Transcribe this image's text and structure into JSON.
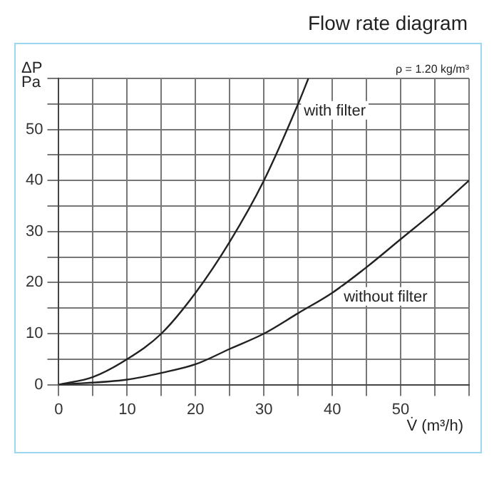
{
  "chart_data": {
    "type": "line",
    "title": "Flow rate diagram",
    "xlabel": "V̇ (m³/h)",
    "ylabel": "ΔP Pa",
    "annotations": [
      "ρ = 1.20 kg/m³"
    ],
    "series": [
      {
        "name": "with filter",
        "color": "#222222",
        "x": [
          0,
          5,
          10,
          15,
          20,
          25,
          30,
          35,
          36.5
        ],
        "values": [
          0,
          1.5,
          5,
          10,
          18,
          28,
          40,
          55,
          60
        ]
      },
      {
        "name": "without filter",
        "color": "#222222",
        "x": [
          0,
          10,
          15,
          20,
          25,
          30,
          35,
          40,
          45,
          50,
          55,
          60
        ],
        "values": [
          0,
          1,
          2.3,
          4,
          7,
          10,
          14,
          18,
          23,
          28.5,
          34,
          40
        ]
      }
    ],
    "xlim": [
      0,
      60
    ],
    "ylim": [
      0,
      60
    ],
    "xticks": [
      0,
      {
        "value": 5,
        "label": null
      },
      10,
      {
        "value": 15,
        "label": null
      },
      20,
      {
        "value": 25,
        "label": null
      },
      30,
      {
        "value": 35,
        "label": null
      },
      40,
      {
        "value": 45,
        "label": null
      },
      50,
      {
        "value": 55,
        "label": null
      },
      {
        "value": 60,
        "label": null
      }
    ],
    "yticks": [
      0,
      {
        "value": 5,
        "label": null
      },
      10,
      {
        "value": 15,
        "label": null
      },
      20,
      {
        "value": 25,
        "label": null
      },
      30,
      {
        "value": 35,
        "label": null
      },
      40,
      {
        "value": 45,
        "label": null
      },
      50,
      {
        "value": 55,
        "label": null
      },
      {
        "value": 60,
        "label": null
      }
    ],
    "grid": true,
    "legend": false,
    "marker": "none",
    "line_style": "solid"
  }
}
